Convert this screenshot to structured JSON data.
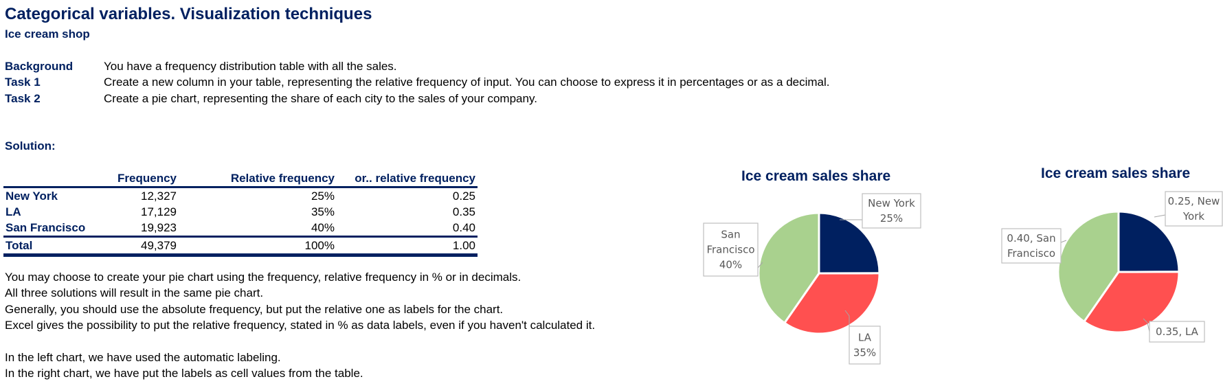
{
  "header": {
    "title": "Categorical variables. Visualization techniques",
    "subtitle": "Ice cream shop"
  },
  "tasks": [
    {
      "label": "Background",
      "text": "You have a frequency distribution table with all the sales."
    },
    {
      "label": "Task 1",
      "text": "Create a new column in your table, representing the relative frequency of input. You can choose to express it in percentages or as a decimal."
    },
    {
      "label": "Task 2",
      "text": "Create a pie chart, representing the share of each city to the sales of your company."
    }
  ],
  "solution_label": "Solution:",
  "table": {
    "headers": [
      "",
      "Frequency",
      "Relative frequency",
      "or.. relative frequency"
    ],
    "rows": [
      {
        "name": "New York",
        "frequency": "12,327",
        "relative_pct": "25%",
        "relative_dec": "0.25"
      },
      {
        "name": "LA",
        "frequency": "17,129",
        "relative_pct": "35%",
        "relative_dec": "0.35"
      },
      {
        "name": "San Francisco",
        "frequency": "19,923",
        "relative_pct": "40%",
        "relative_dec": "0.40"
      }
    ],
    "total": {
      "name": "Total",
      "frequency": "49,379",
      "relative_pct": "100%",
      "relative_dec": "1.00"
    }
  },
  "notes": [
    "You may choose to create your pie chart using the frequency, relative frequency in % or in decimals.",
    "All three solutions will result in the same pie chart.",
    "Generally, you should use the absolute frequency, but put the relative one as labels for the chart.",
    "Excel gives the possibility to put the relative frequency, stated in % as data labels, even if you haven't calculated it.",
    "In the left chart, we have used the automatic labeling.",
    "In the right chart, we have put the labels as cell values from the table."
  ],
  "colors": {
    "navy": "#002060",
    "new_york": "#002060",
    "la": "#FF5050",
    "san_francisco": "#A9D18E"
  },
  "chart_data": [
    {
      "type": "pie",
      "title": "Ice cream sales share",
      "categories": [
        "New York",
        "LA",
        "San Francisco"
      ],
      "values": [
        12327,
        17129,
        19923
      ],
      "colors": [
        "#002060",
        "#FF5050",
        "#A9D18E"
      ],
      "data_labels": [
        [
          "New York",
          "25%"
        ],
        [
          "LA",
          "35%"
        ],
        [
          "San",
          "Francisco",
          "40%"
        ]
      ]
    },
    {
      "type": "pie",
      "title": "Ice cream sales share",
      "categories": [
        "New York",
        "LA",
        "San Francisco"
      ],
      "values": [
        12327,
        17129,
        19923
      ],
      "colors": [
        "#002060",
        "#FF5050",
        "#A9D18E"
      ],
      "data_labels": [
        [
          "0.25, New",
          "York"
        ],
        [
          "0.35, LA"
        ],
        [
          "0.40, San",
          "Francisco"
        ]
      ]
    }
  ]
}
